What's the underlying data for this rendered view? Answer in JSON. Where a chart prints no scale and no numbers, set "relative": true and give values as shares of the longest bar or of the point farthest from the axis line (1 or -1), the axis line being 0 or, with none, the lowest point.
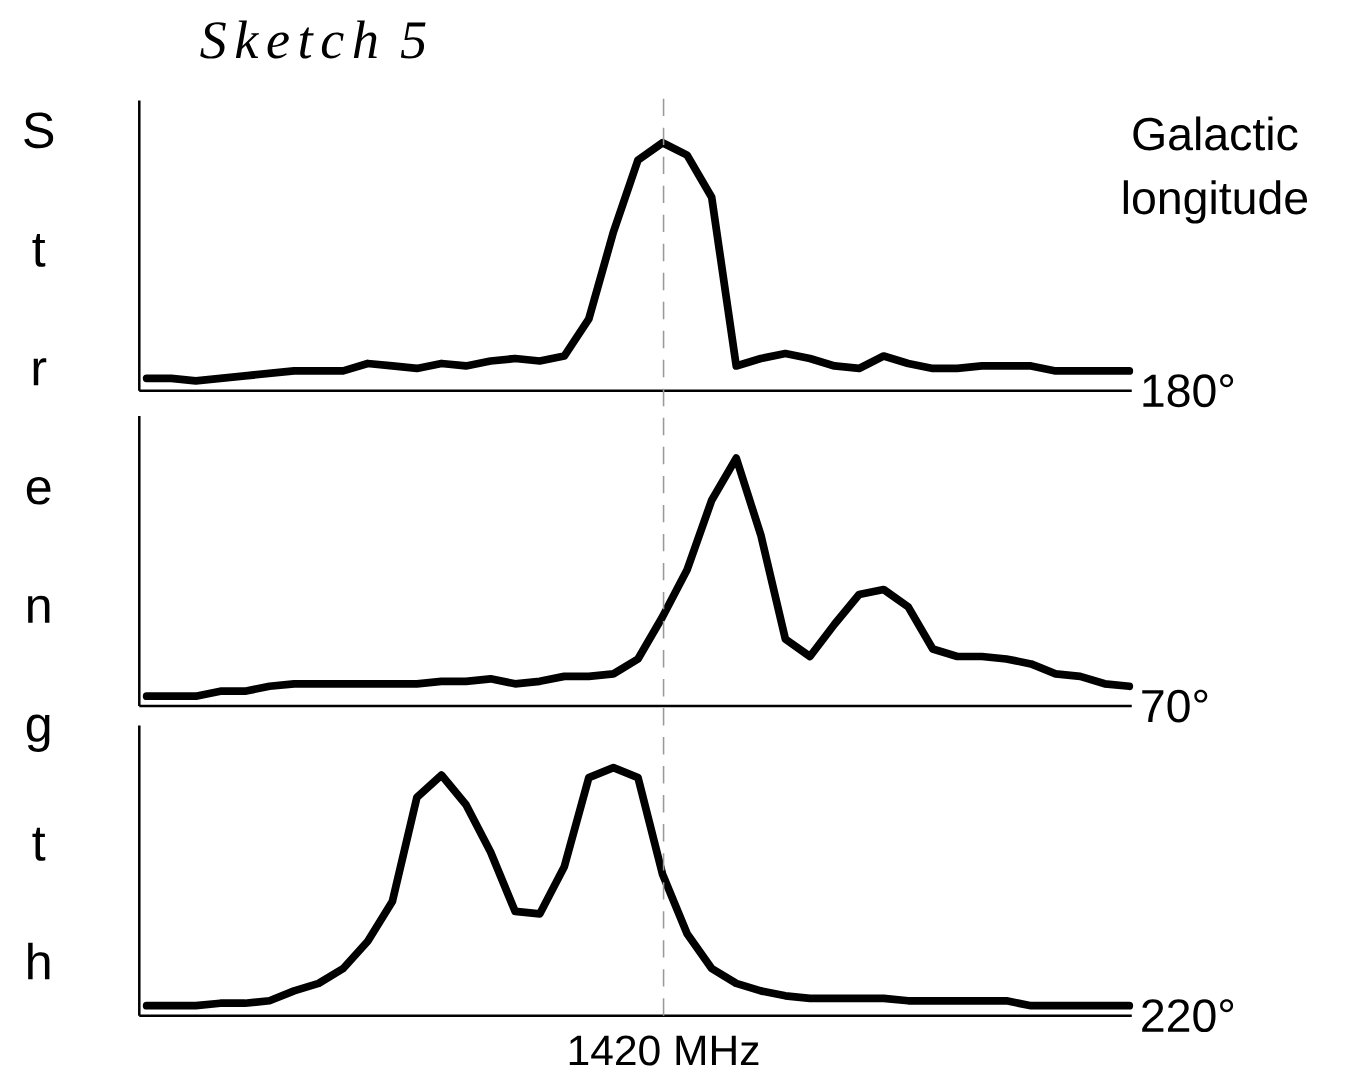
{
  "chart_data": [
    {
      "type": "line",
      "title": "Sketch 5",
      "ylabel": "Strength",
      "annotations": [
        "Galactic longitude"
      ],
      "relative": true,
      "categories": [
        null,
        null,
        null,
        null,
        null,
        null,
        null,
        null,
        null,
        null,
        null,
        null,
        null,
        null,
        null,
        null,
        null,
        null,
        null,
        null,
        null,
        null,
        null,
        null,
        null,
        null,
        null,
        null,
        null,
        null,
        null,
        null,
        null,
        null,
        null,
        null,
        null,
        null,
        null,
        null,
        null
      ],
      "series": [
        {
          "name": "180°",
          "color": "#000000",
          "values": [
            0.05,
            0.05,
            0.04,
            0.05,
            0.06,
            0.07,
            0.08,
            0.08,
            0.08,
            0.11,
            0.1,
            0.09,
            0.11,
            0.1,
            0.12,
            0.13,
            0.12,
            0.14,
            0.29,
            0.64,
            0.93,
            1.0,
            0.95,
            0.78,
            0.1,
            0.13,
            0.15,
            0.13,
            0.1,
            0.09,
            0.14,
            0.11,
            0.09,
            0.09,
            0.1,
            0.1,
            0.1,
            0.08,
            0.08,
            0.08,
            0.08
          ]
        }
      ]
    },
    {
      "type": "line",
      "relative": true,
      "categories": [
        null,
        null,
        null,
        null,
        null,
        null,
        null,
        null,
        null,
        null,
        null,
        null,
        null,
        null,
        null,
        null,
        null,
        null,
        null,
        null,
        null,
        null,
        null,
        null,
        null,
        null,
        null,
        null,
        null,
        null,
        null,
        null,
        null,
        null,
        null,
        null,
        null,
        null,
        null,
        null,
        null
      ],
      "series": [
        {
          "name": "70°",
          "color": "#000000",
          "values": [
            0.04,
            0.04,
            0.04,
            0.06,
            0.06,
            0.08,
            0.09,
            0.09,
            0.09,
            0.09,
            0.09,
            0.09,
            0.1,
            0.1,
            0.11,
            0.09,
            0.1,
            0.12,
            0.12,
            0.13,
            0.19,
            0.36,
            0.55,
            0.83,
            1.0,
            0.69,
            0.27,
            0.2,
            0.33,
            0.45,
            0.47,
            0.4,
            0.23,
            0.2,
            0.2,
            0.19,
            0.17,
            0.13,
            0.12,
            0.09,
            0.08
          ]
        }
      ]
    },
    {
      "type": "line",
      "relative": true,
      "categories": [
        null,
        null,
        null,
        null,
        null,
        null,
        null,
        null,
        null,
        null,
        null,
        null,
        null,
        null,
        null,
        null,
        null,
        null,
        null,
        null,
        null,
        null,
        null,
        null,
        null,
        null,
        null,
        null,
        null,
        null,
        null,
        null,
        null,
        null,
        null,
        null,
        null,
        null,
        null,
        null,
        null
      ],
      "series": [
        {
          "name": "220°",
          "color": "#000000",
          "values": [
            0.04,
            0.04,
            0.04,
            0.05,
            0.05,
            0.06,
            0.1,
            0.13,
            0.19,
            0.3,
            0.46,
            0.88,
            0.97,
            0.85,
            0.66,
            0.42,
            0.41,
            0.6,
            0.96,
            1.0,
            0.96,
            0.57,
            0.33,
            0.19,
            0.13,
            0.1,
            0.08,
            0.07,
            0.07,
            0.07,
            0.07,
            0.06,
            0.06,
            0.06,
            0.06,
            0.06,
            0.04,
            0.04,
            0.04,
            0.04,
            0.04
          ]
        }
      ],
      "annotations": [
        "1420 MHz"
      ]
    }
  ]
}
